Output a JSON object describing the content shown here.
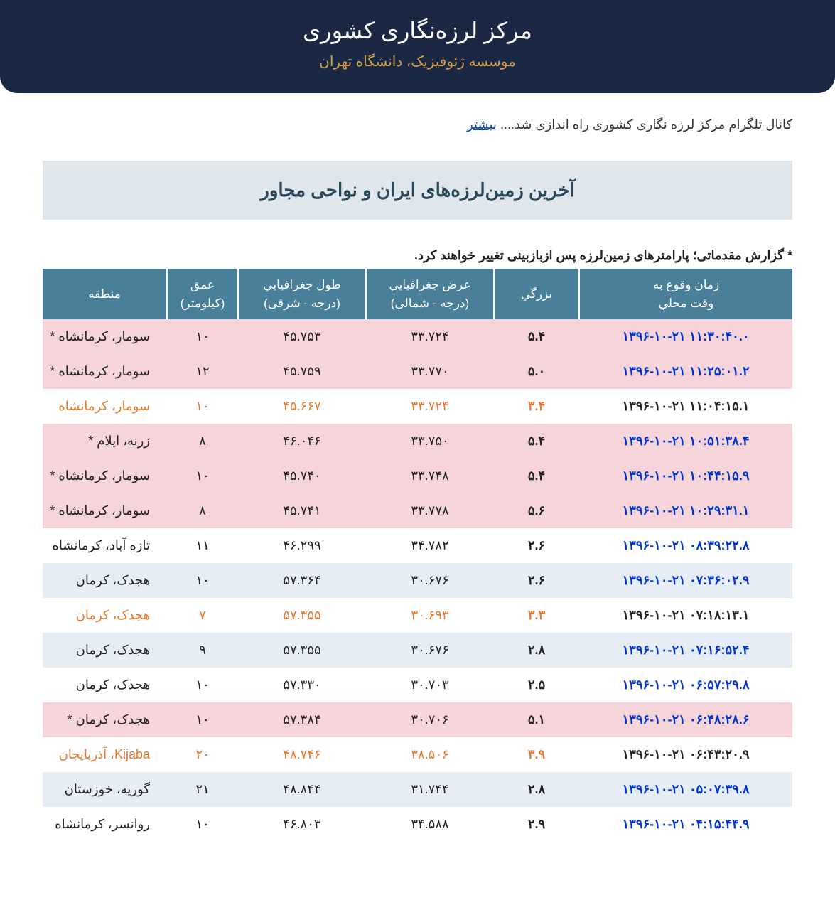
{
  "header": {
    "title": "مرکز لرزه‌نگاری کشوری",
    "subtitle": "موسسه ژئوفیزیک، دانشگاه تهران"
  },
  "notice": {
    "text": "کانال تلگرام مرکز لرزه نگاری کشوری راه اندازی شد.... ",
    "link": "بیشتر"
  },
  "banner": "آخرین زمین‌لرزه‌های ایران و نواحی مجاور",
  "note": "* گزارش مقدماتی؛ پارامترهای زمین‌لرزه پس ازبازبینی تغییر خواهند کرد.",
  "table": {
    "headers": {
      "time": "زمان وقوع به",
      "time_sub": "وقت محلي",
      "magnitude": "بزرگي",
      "latitude": "عرض جغرافيايي",
      "latitude_sub": "(درجه - شمالی)",
      "longitude": "طول جغرافيايي",
      "longitude_sub": "(درجه - شرقی)",
      "depth": "عمق",
      "depth_sub": "(کیلومتر)",
      "region": "منطقه"
    },
    "rows": [
      {
        "rowClass": "pink",
        "timeColor": "blue",
        "time": "۱۳۹۶-۱۰-۲۱ ۱۱:۳۰:۴۰.۰",
        "mag": "۵.۴",
        "lat": "۳۳.۷۲۴",
        "lon": "۴۵.۷۵۳",
        "depth": "۱۰",
        "region": "سومار، کرمانشاه *",
        "orange": false
      },
      {
        "rowClass": "pink",
        "timeColor": "blue",
        "time": "۱۳۹۶-۱۰-۲۱ ۱۱:۲۵:۰۱.۲",
        "mag": "۵.۰",
        "lat": "۳۳.۷۷۰",
        "lon": "۴۵.۷۵۹",
        "depth": "۱۲",
        "region": "سومار، کرمانشاه *",
        "orange": false
      },
      {
        "rowClass": "white",
        "timeColor": "black",
        "time": "۱۳۹۶-۱۰-۲۱ ۱۱:۰۴:۱۵.۱",
        "mag": "۳.۴",
        "lat": "۳۳.۷۲۴",
        "lon": "۴۵.۶۶۷",
        "depth": "۱۰",
        "region": "سومار، کرمانشاه",
        "orange": true
      },
      {
        "rowClass": "pink",
        "timeColor": "blue",
        "time": "۱۳۹۶-۱۰-۲۱ ۱۰:۵۱:۳۸.۴",
        "mag": "۵.۴",
        "lat": "۳۳.۷۵۰",
        "lon": "۴۶.۰۴۶",
        "depth": "۸",
        "region": "زرنه، ایلام *",
        "orange": false
      },
      {
        "rowClass": "pink",
        "timeColor": "blue",
        "time": "۱۳۹۶-۱۰-۲۱ ۱۰:۴۴:۱۵.۹",
        "mag": "۵.۴",
        "lat": "۳۳.۷۴۸",
        "lon": "۴۵.۷۴۰",
        "depth": "۱۰",
        "region": "سومار، کرمانشاه *",
        "orange": false
      },
      {
        "rowClass": "pink",
        "timeColor": "blue",
        "time": "۱۳۹۶-۱۰-۲۱ ۱۰:۲۹:۳۱.۱",
        "mag": "۵.۶",
        "lat": "۳۳.۷۷۸",
        "lon": "۴۵.۷۴۱",
        "depth": "۸",
        "region": "سومار، کرمانشاه *",
        "orange": false
      },
      {
        "rowClass": "white",
        "timeColor": "blue",
        "time": "۱۳۹۶-۱۰-۲۱ ۰۸:۳۹:۲۲.۸",
        "mag": "۲.۶",
        "lat": "۳۴.۷۸۲",
        "lon": "۴۶.۲۹۹",
        "depth": "۱۱",
        "region": "تازه آباد، کرمانشاه",
        "orange": false
      },
      {
        "rowClass": "blue",
        "timeColor": "blue",
        "time": "۱۳۹۶-۱۰-۲۱ ۰۷:۳۶:۰۲.۹",
        "mag": "۲.۶",
        "lat": "۳۰.۶۷۶",
        "lon": "۵۷.۳۶۴",
        "depth": "۱۰",
        "region": "هجدک، کرمان",
        "orange": false
      },
      {
        "rowClass": "white",
        "timeColor": "black",
        "time": "۱۳۹۶-۱۰-۲۱ ۰۷:۱۸:۱۳.۱",
        "mag": "۳.۳",
        "lat": "۳۰.۶۹۳",
        "lon": "۵۷.۳۵۵",
        "depth": "۷",
        "region": "هجدک، کرمان",
        "orange": true
      },
      {
        "rowClass": "blue",
        "timeColor": "blue",
        "time": "۱۳۹۶-۱۰-۲۱ ۰۷:۱۶:۵۲.۴",
        "mag": "۲.۸",
        "lat": "۳۰.۶۷۶",
        "lon": "۵۷.۳۵۵",
        "depth": "۹",
        "region": "هجدک، کرمان",
        "orange": false
      },
      {
        "rowClass": "white",
        "timeColor": "blue",
        "time": "۱۳۹۶-۱۰-۲۱ ۰۶:۵۷:۲۹.۸",
        "mag": "۲.۵",
        "lat": "۳۰.۷۰۳",
        "lon": "۵۷.۳۳۰",
        "depth": "۱۰",
        "region": "هجدک، کرمان",
        "orange": false
      },
      {
        "rowClass": "pink",
        "timeColor": "blue",
        "time": "۱۳۹۶-۱۰-۲۱ ۰۶:۴۸:۲۸.۶",
        "mag": "۵.۱",
        "lat": "۳۰.۷۰۶",
        "lon": "۵۷.۳۸۴",
        "depth": "۱۰",
        "region": "هجدک، کرمان *",
        "orange": false
      },
      {
        "rowClass": "white",
        "timeColor": "black",
        "time": "۱۳۹۶-۱۰-۲۱ ۰۶:۴۳:۲۰.۹",
        "mag": "۳.۹",
        "lat": "۳۸.۵۰۶",
        "lon": "۴۸.۷۴۶",
        "depth": "۲۰",
        "region": "Kijaba، آذربایجان",
        "orange": true
      },
      {
        "rowClass": "blue",
        "timeColor": "blue",
        "time": "۱۳۹۶-۱۰-۲۱ ۰۵:۰۷:۳۹.۸",
        "mag": "۲.۸",
        "lat": "۳۱.۷۴۴",
        "lon": "۴۸.۸۴۴",
        "depth": "۲۱",
        "region": "گوریه، خوزستان",
        "orange": false
      },
      {
        "rowClass": "white",
        "timeColor": "blue",
        "time": "۱۳۹۶-۱۰-۲۱ ۰۴:۱۵:۴۴.۹",
        "mag": "۲.۹",
        "lat": "۳۴.۵۸۸",
        "lon": "۴۶.۸۰۳",
        "depth": "۱۰",
        "region": "روانسر، کرمانشاه",
        "orange": false
      }
    ]
  }
}
